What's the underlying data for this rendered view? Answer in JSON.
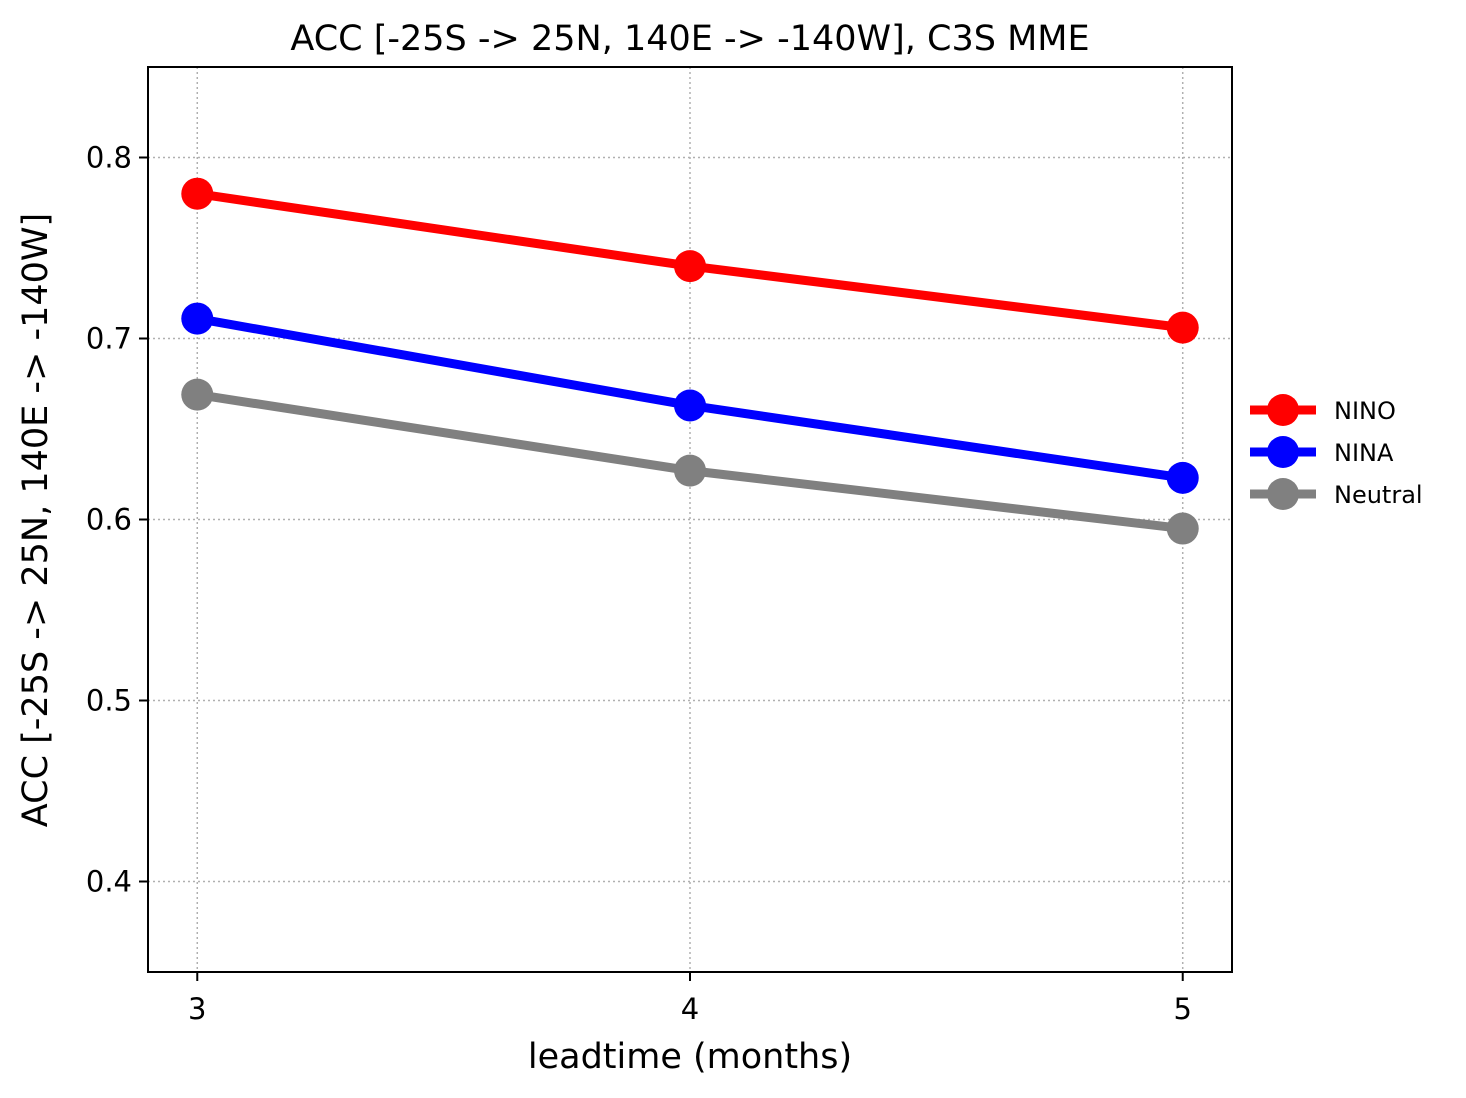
{
  "chart_data": {
    "type": "line",
    "title": "ACC [-25S -> 25N, 140E -> -140W], C3S MME",
    "xlabel": "leadtime (months)",
    "ylabel": "ACC [-25S -> 25N, 140E -> -140W]",
    "x": [
      3,
      4,
      5
    ],
    "x_ticks": [
      "3",
      "4",
      "5"
    ],
    "xlim": [
      2.9,
      5.1
    ],
    "ylim": [
      0.35,
      0.85
    ],
    "y_ticks": [
      "0.4",
      "0.5",
      "0.6",
      "0.7",
      "0.8"
    ],
    "grid": true,
    "legend_position": "outside-right",
    "series": [
      {
        "name": "NINO",
        "color": "#ff0000",
        "values": [
          0.78,
          0.74,
          0.706
        ]
      },
      {
        "name": "NINA",
        "color": "#0000ff",
        "values": [
          0.711,
          0.663,
          0.623
        ]
      },
      {
        "name": "Neutral",
        "color": "#808080",
        "values": [
          0.669,
          0.627,
          0.595
        ]
      }
    ]
  }
}
